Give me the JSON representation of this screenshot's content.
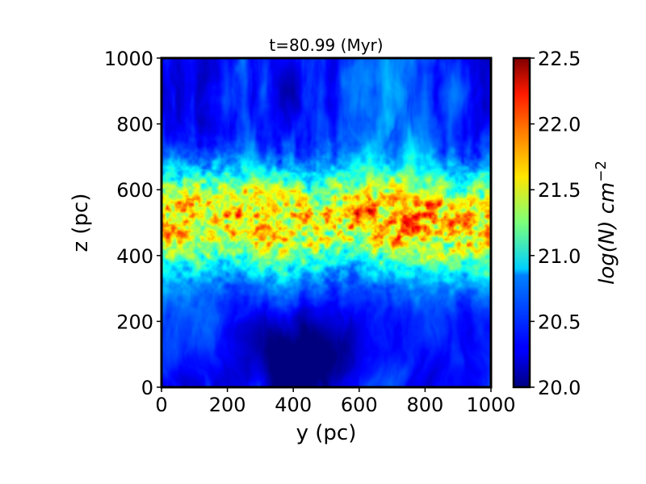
{
  "chart_data": {
    "type": "heatmap",
    "title": "t=80.99 (Myr)",
    "xlabel": "y (pc)",
    "ylabel": "z (pc)",
    "xlim": [
      0,
      1000
    ],
    "ylim": [
      0,
      1000
    ],
    "x_ticks": [
      0,
      200,
      400,
      600,
      800,
      1000
    ],
    "y_ticks": [
      0,
      200,
      400,
      600,
      800,
      1000
    ],
    "colorbar": {
      "label_base": "log(N) cm",
      "label_exponent": "−2",
      "range": [
        20.0,
        22.5
      ],
      "ticks": [
        "20.0",
        "20.5",
        "21.0",
        "21.5",
        "22.0",
        "22.5"
      ],
      "colormap": "jet"
    },
    "field": {
      "midplane_z": 500,
      "peak_value": 22.3,
      "background_value": 20.25,
      "disk_scale_height_pc": 110,
      "low_density_cavity_center": [
        430,
        80
      ]
    }
  }
}
